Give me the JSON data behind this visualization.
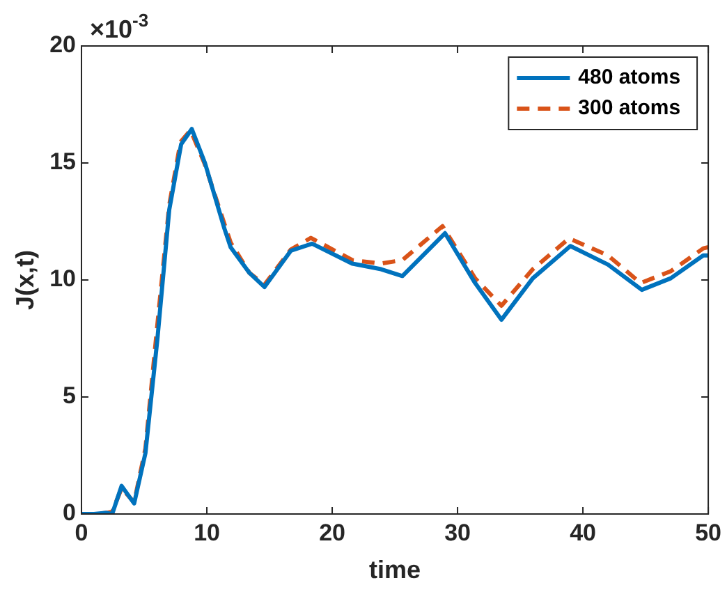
{
  "chart_data": {
    "type": "line",
    "xlabel": "time",
    "ylabel": "J(x,t)",
    "annotations": [
      "×10$^{-3}$"
    ],
    "xlim": [
      0,
      50
    ],
    "xticks": [
      0,
      10,
      20,
      30,
      40,
      50
    ],
    "ylim": [
      0,
      20
    ],
    "yticks": [
      0,
      5,
      10,
      15,
      20
    ],
    "grid": false,
    "legend": "top right",
    "marker": "none",
    "series": [
      {
        "name": "480 atoms",
        "color": "#0072bd",
        "line_style": "solid",
        "x": [
          0,
          1,
          2,
          2.45,
          3.2,
          4.2,
          5.1,
          6.06,
          7,
          7.95,
          8.8,
          9.85,
          11.4,
          11.9,
          13.4,
          14.6,
          16.7,
          18.4,
          21.6,
          23.9,
          25.6,
          29,
          31.4,
          33.5,
          36,
          39,
          42,
          44.7,
          47,
          49.6,
          50
        ],
        "values": [
          0,
          0,
          0.05,
          0,
          1.2,
          0.45,
          2.6,
          7.5,
          13,
          15.8,
          16.45,
          15,
          12.2,
          11.4,
          10.3,
          9.7,
          11.25,
          11.55,
          10.7,
          10.46,
          10.17,
          12,
          9.87,
          8.3,
          10.07,
          11.45,
          10.66,
          9.58,
          10.07,
          11.05,
          11.05
        ]
      },
      {
        "name": "300 atoms",
        "color": "#d95319",
        "line_style": "dashed",
        "x": [
          0,
          1,
          2,
          2.45,
          3.2,
          4.2,
          5.1,
          6,
          7,
          7.9,
          8.7,
          9.8,
          11.4,
          11.9,
          13.4,
          14.6,
          16.7,
          18.3,
          21.6,
          23.9,
          25.6,
          28.8,
          31.4,
          33.5,
          36,
          38.9,
          42,
          44.6,
          47,
          49.6,
          50
        ],
        "values": [
          0,
          0,
          0.05,
          0.1,
          1.1,
          0.5,
          2.8,
          7.8,
          13.2,
          15.9,
          16.4,
          15,
          12.4,
          11.6,
          10.3,
          9.8,
          11.3,
          11.8,
          10.85,
          10.7,
          10.85,
          12.3,
          10.07,
          8.9,
          10.46,
          11.78,
          11.05,
          9.87,
          10.37,
          11.35,
          11.4
        ]
      }
    ]
  }
}
